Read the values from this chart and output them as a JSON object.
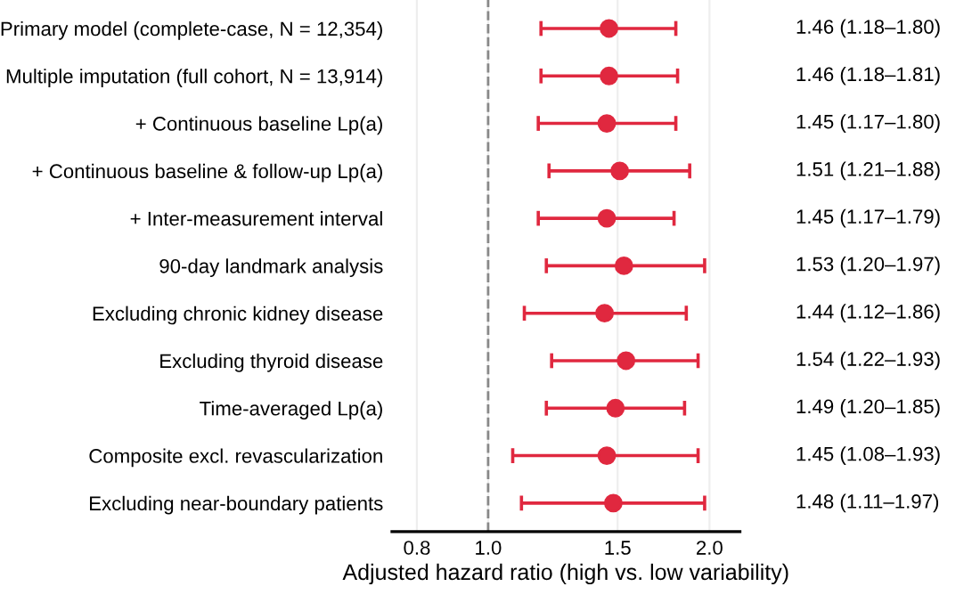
{
  "chart_data": {
    "type": "scatter",
    "orientation": "horizontal",
    "xlabel": "Adjusted hazard ratio (high vs. low variability)",
    "categories": [
      "Primary model (complete-case, N = 12,354)",
      "Multiple imputation (full cohort, N = 13,914)",
      "+ Continuous baseline Lp(a)",
      "+ Continuous baseline & follow-up Lp(a)",
      "+ Inter-measurement interval",
      "90-day landmark analysis",
      "Excluding chronic kidney disease",
      "Excluding thyroid disease",
      "Time-averaged Lp(a)",
      "Composite excl. revascularization",
      "Excluding near-boundary patients"
    ],
    "series": [
      {
        "color": "#e0283f",
        "values": [
          1.46,
          1.46,
          1.45,
          1.51,
          1.45,
          1.53,
          1.44,
          1.54,
          1.49,
          1.45,
          1.48
        ],
        "errors": [
          [
            1.18,
            1.8
          ],
          [
            1.18,
            1.81
          ],
          [
            1.17,
            1.8
          ],
          [
            1.21,
            1.88
          ],
          [
            1.17,
            1.79
          ],
          [
            1.2,
            1.97
          ],
          [
            1.12,
            1.86
          ],
          [
            1.22,
            1.93
          ],
          [
            1.2,
            1.85
          ],
          [
            1.08,
            1.93
          ],
          [
            1.11,
            1.97
          ]
        ],
        "value_labels": [
          "1.46 (1.18–1.80)",
          "1.46 (1.18–1.81)",
          "1.45 (1.17–1.80)",
          "1.51 (1.21–1.88)",
          "1.45 (1.17–1.79)",
          "1.53 (1.20–1.97)",
          "1.44 (1.12–1.86)",
          "1.54 (1.22–1.93)",
          "1.49 (1.20–1.85)",
          "1.45 (1.08–1.93)",
          "1.48 (1.11–1.97)"
        ]
      }
    ],
    "log": "x",
    "xlim": [
      0.74,
      2.2
    ],
    "xticks": [
      0.8,
      {
        "value": 1,
        "label": "1.0"
      },
      1.5,
      {
        "value": 2,
        "label": "2.0"
      }
    ],
    "ref_lines": [
      {
        "axis": "x",
        "value": 1,
        "color": "#888888",
        "line_style": "dashed"
      }
    ],
    "grid": "x",
    "marker": "circle",
    "legend": false
  }
}
